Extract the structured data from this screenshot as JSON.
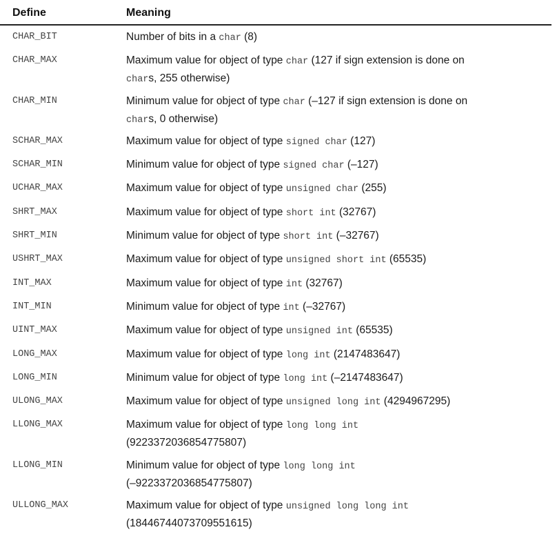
{
  "table": {
    "headers": {
      "define": "Define",
      "meaning": "Meaning"
    },
    "rows": [
      {
        "define": "CHAR_BIT",
        "meaning": [
          {
            "t": "Number of bits in a "
          },
          {
            "c": "char"
          },
          {
            "t": " (8)"
          }
        ]
      },
      {
        "define": "CHAR_MAX",
        "meaning": [
          {
            "t": "Maximum value for object of type "
          },
          {
            "c": "char"
          },
          {
            "t": " (127 if sign extension is done on"
          },
          {
            "br": true
          },
          {
            "c": "char"
          },
          {
            "t": "s, 255 otherwise)"
          }
        ]
      },
      {
        "define": "CHAR_MIN",
        "meaning": [
          {
            "t": "Minimum value for object of type "
          },
          {
            "c": "char"
          },
          {
            "t": " (–127 if sign extension is done on"
          },
          {
            "br": true
          },
          {
            "c": "char"
          },
          {
            "t": "s, 0 otherwise)"
          }
        ]
      },
      {
        "define": "SCHAR_MAX",
        "meaning": [
          {
            "t": "Maximum value for object of type "
          },
          {
            "c": "signed char"
          },
          {
            "t": " (127)"
          }
        ]
      },
      {
        "define": "SCHAR_MIN",
        "meaning": [
          {
            "t": "Minimum value for object of type "
          },
          {
            "c": "signed char"
          },
          {
            "t": " (–127)"
          }
        ]
      },
      {
        "define": "UCHAR_MAX",
        "meaning": [
          {
            "t": "Maximum value for object of type "
          },
          {
            "c": "unsigned char"
          },
          {
            "t": " (255)"
          }
        ]
      },
      {
        "define": "SHRT_MAX",
        "meaning": [
          {
            "t": "Maximum value for object of type "
          },
          {
            "c": "short int"
          },
          {
            "t": " (32767)"
          }
        ]
      },
      {
        "define": "SHRT_MIN",
        "meaning": [
          {
            "t": "Minimum value for object of type "
          },
          {
            "c": "short int"
          },
          {
            "t": " (–32767)"
          }
        ]
      },
      {
        "define": "USHRT_MAX",
        "meaning": [
          {
            "t": "Maximum value for object of type "
          },
          {
            "c": "unsigned short int"
          },
          {
            "t": " (65535)"
          }
        ]
      },
      {
        "define": "INT_MAX",
        "meaning": [
          {
            "t": "Maximum value for object of type "
          },
          {
            "c": "int"
          },
          {
            "t": " (32767)"
          }
        ]
      },
      {
        "define": "INT_MIN",
        "meaning": [
          {
            "t": "Minimum value for object of type "
          },
          {
            "c": "int"
          },
          {
            "t": " (–32767)"
          }
        ]
      },
      {
        "define": "UINT_MAX",
        "meaning": [
          {
            "t": "Maximum value for object of type "
          },
          {
            "c": "unsigned int"
          },
          {
            "t": " (65535)"
          }
        ]
      },
      {
        "define": "LONG_MAX",
        "meaning": [
          {
            "t": "Maximum value for object of type "
          },
          {
            "c": "long int"
          },
          {
            "t": " (2147483647)"
          }
        ]
      },
      {
        "define": "LONG_MIN",
        "meaning": [
          {
            "t": "Minimum value for object of type "
          },
          {
            "c": "long int"
          },
          {
            "t": " (–2147483647)"
          }
        ]
      },
      {
        "define": "ULONG_MAX",
        "meaning": [
          {
            "t": "Maximum value for object of type "
          },
          {
            "c": "unsigned long int"
          },
          {
            "t": " (4294967295)"
          }
        ]
      },
      {
        "define": "LLONG_MAX",
        "meaning": [
          {
            "t": "Maximum value for object of type "
          },
          {
            "c": "long long int"
          },
          {
            "br": true
          },
          {
            "t": "(9223372036854775807)"
          }
        ]
      },
      {
        "define": "LLONG_MIN",
        "meaning": [
          {
            "t": "Minimum value for object of type "
          },
          {
            "c": "long long int"
          },
          {
            "br": true
          },
          {
            "t": "(–9223372036854775807)"
          }
        ]
      },
      {
        "define": "ULLONG_MAX",
        "meaning": [
          {
            "t": "Maximum value for object of type "
          },
          {
            "c": "unsigned long long int"
          },
          {
            "br": true
          },
          {
            "t": "(18446744073709551615)"
          }
        ]
      }
    ]
  }
}
